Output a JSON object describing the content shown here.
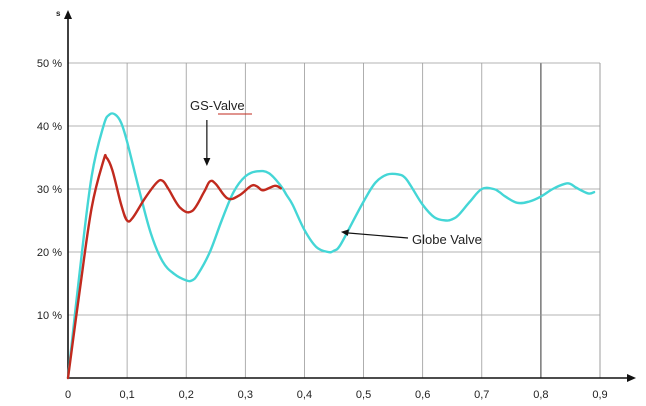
{
  "chart_data": {
    "type": "line",
    "title": "",
    "xlabel": "",
    "ylabel": "s",
    "xlim": [
      0,
      1.0
    ],
    "ylim": [
      0,
      50
    ],
    "grid": true,
    "x_ticks": [
      0,
      0.1,
      0.2,
      0.3,
      0.4,
      0.5,
      0.6,
      0.7,
      0.8,
      0.9
    ],
    "x_tick_labels": [
      "0",
      "0,1",
      "0,2",
      "0,3",
      "0,4",
      "0,5",
      "0,6",
      "0,7",
      "0,8",
      "0,9"
    ],
    "y_ticks": [
      10,
      20,
      30,
      40,
      50
    ],
    "y_tick_labels": [
      "10 %",
      "20 %",
      "30 %",
      "40 %",
      "50 %"
    ],
    "series": [
      {
        "name": "Globe Valve",
        "color": "#44d6d6",
        "x": [
          0,
          0.02,
          0.04,
          0.06,
          0.07,
          0.08,
          0.09,
          0.1,
          0.12,
          0.14,
          0.16,
          0.18,
          0.2,
          0.21,
          0.22,
          0.24,
          0.26,
          0.28,
          0.3,
          0.32,
          0.34,
          0.36,
          0.37,
          0.38,
          0.4,
          0.42,
          0.44,
          0.45,
          0.46,
          0.48,
          0.5,
          0.52,
          0.54,
          0.56,
          0.57,
          0.58,
          0.6,
          0.62,
          0.64,
          0.65,
          0.66,
          0.68,
          0.7,
          0.72,
          0.73,
          0.74,
          0.76,
          0.78,
          0.8,
          0.82,
          0.84,
          0.85,
          0.86,
          0.88,
          0.89
        ],
        "values": [
          0,
          17,
          32,
          40,
          41.8,
          41.8,
          40.5,
          37.5,
          30,
          23,
          18.5,
          16.5,
          15.5,
          15.5,
          16.5,
          20,
          25,
          29.5,
          32,
          32.8,
          32.5,
          30.5,
          29,
          27.5,
          23.5,
          20.8,
          20,
          20.2,
          21,
          24.5,
          28,
          31,
          32.3,
          32.3,
          31.8,
          30.5,
          27.5,
          25.5,
          25,
          25.2,
          25.8,
          28,
          30,
          30,
          29.5,
          28.8,
          27.8,
          28,
          28.8,
          30,
          30.8,
          30.8,
          30.2,
          29.3,
          29.5
        ]
      },
      {
        "name": "GS-Valve",
        "color": "#c12a1e",
        "x": [
          0,
          0.02,
          0.04,
          0.06,
          0.065,
          0.075,
          0.09,
          0.1,
          0.11,
          0.13,
          0.15,
          0.16,
          0.17,
          0.19,
          0.21,
          0.23,
          0.24,
          0.25,
          0.27,
          0.29,
          0.31,
          0.32,
          0.33,
          0.35,
          0.36
        ],
        "values": [
          0,
          14,
          27,
          34.5,
          35,
          33,
          27.5,
          25,
          25.5,
          28.5,
          31,
          31.3,
          30,
          27,
          26.5,
          29.5,
          31.2,
          30.8,
          28.5,
          29,
          30.5,
          30.4,
          29.8,
          30.5,
          30.1
        ]
      }
    ],
    "annotations": [
      {
        "text": "GS-Valve",
        "target": "GS-Valve",
        "point_x": 0.24,
        "point_y": 33
      },
      {
        "text": "Globe Valve",
        "target": "Globe Valve",
        "point_x": 0.46,
        "point_y": 23.2
      }
    ]
  }
}
